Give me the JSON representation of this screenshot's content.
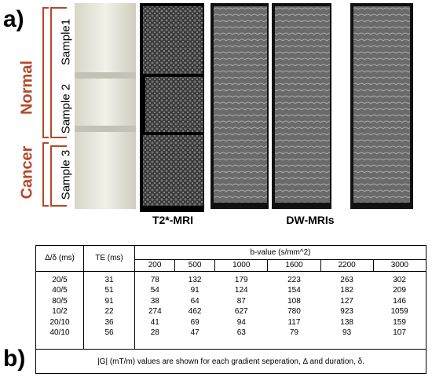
{
  "panel_a": {
    "label": "a)",
    "groups": [
      "Normal",
      "Cancer"
    ],
    "samples": [
      "Sample1",
      "Sample 2",
      "Sample 3"
    ],
    "image_labels": [
      "T2*-MRI",
      "DW-MRIs"
    ]
  },
  "panel_b": {
    "label": "b)",
    "table": {
      "headers": [
        "Δ/δ (ms)",
        "TE (ms)",
        "b-value (s/mm^2)"
      ],
      "b_values": [
        200,
        500,
        1000,
        1600,
        2200,
        3000
      ],
      "rows": [
        [
          "20/5",
          31,
          78,
          132,
          179,
          223,
          263,
          302
        ],
        [
          "40/5",
          51,
          54,
          91,
          124,
          154,
          182,
          209
        ],
        [
          "80/5",
          91,
          38,
          64,
          87,
          108,
          127,
          146
        ],
        [
          "10/2",
          22,
          274,
          462,
          627,
          780,
          923,
          1059
        ],
        [
          "20/10",
          36,
          41,
          69,
          94,
          117,
          138,
          159
        ],
        [
          "40/10",
          56,
          28,
          47,
          63,
          79,
          93,
          107
        ]
      ],
      "caption": "|G| (mT/m) values are shown for each gradient seperation, Δ and duration, δ."
    }
  }
}
